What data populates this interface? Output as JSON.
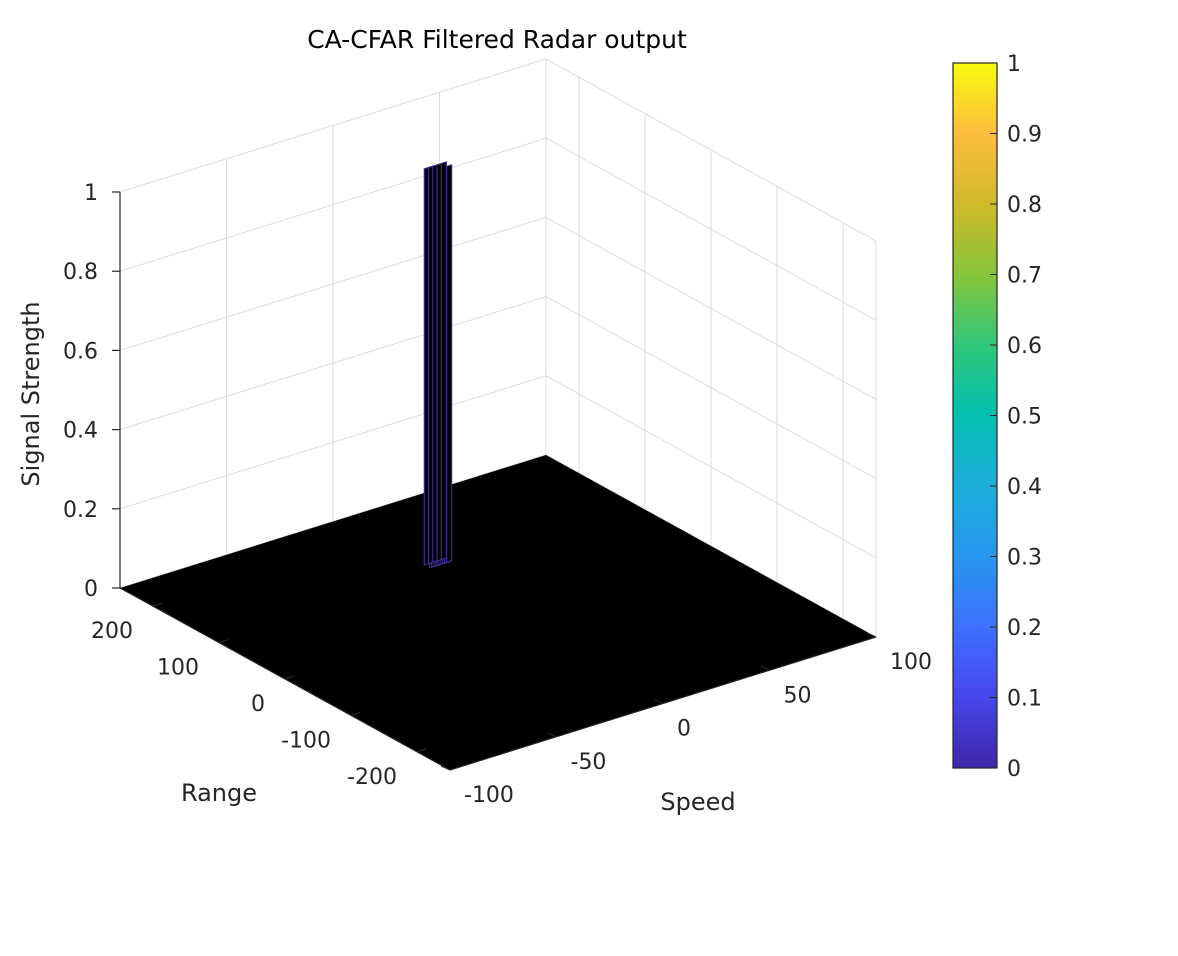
{
  "chart_data": {
    "type": "surface",
    "title": "CA-CFAR Filtered Radar output",
    "xlabel": "Speed",
    "ylabel": "Range",
    "zlabel": "Signal Strength",
    "xlim": [
      -100,
      100
    ],
    "ylim": [
      -250,
      250
    ],
    "zlim": [
      0,
      1
    ],
    "x_ticks": [
      "-100",
      "-50",
      "0",
      "50",
      "100"
    ],
    "x_tick_values": [
      -100,
      -50,
      0,
      50,
      100
    ],
    "y_ticks": [
      "-200",
      "-100",
      "0",
      "100",
      "200"
    ],
    "y_tick_values": [
      -200,
      -100,
      0,
      100,
      200
    ],
    "z_ticks": [
      "0",
      "0.2",
      "0.4",
      "0.6",
      "0.8",
      "1"
    ],
    "z_tick_values": [
      0,
      0.2,
      0.4,
      0.6,
      0.8,
      1
    ],
    "grid": true,
    "surface_color": "#000000",
    "edge_color": "#3e2f95",
    "detections": [
      {
        "speed": 5,
        "range": 110,
        "value": 1
      },
      {
        "speed": 6,
        "range": 110,
        "value": 1
      },
      {
        "speed": 7,
        "range": 110,
        "value": 1
      },
      {
        "speed": 8,
        "range": 110,
        "value": 1
      },
      {
        "speed": 9,
        "range": 110,
        "value": 1
      },
      {
        "speed": 10,
        "range": 110,
        "value": 1
      },
      {
        "speed": 11,
        "range": 110,
        "value": 1
      },
      {
        "speed": 12,
        "range": 110,
        "value": 1
      },
      {
        "speed": 13,
        "range": 110,
        "value": 1
      },
      {
        "speed": 5,
        "range": 118,
        "value": 1
      },
      {
        "speed": 7,
        "range": 118,
        "value": 1
      },
      {
        "speed": 9,
        "range": 118,
        "value": 1
      },
      {
        "speed": 11,
        "range": 118,
        "value": 1
      },
      {
        "speed": 13,
        "range": 118,
        "value": 1
      }
    ],
    "colorbar": {
      "ticks": [
        "0",
        "0.1",
        "0.2",
        "0.3",
        "0.4",
        "0.5",
        "0.6",
        "0.7",
        "0.8",
        "0.9",
        "1"
      ],
      "tick_values": [
        0,
        0.1,
        0.2,
        0.3,
        0.4,
        0.5,
        0.6,
        0.7,
        0.8,
        0.9,
        1
      ],
      "colormap": [
        "#3e26a8",
        "#4746eb",
        "#3e70ff",
        "#2797ef",
        "#1caedb",
        "#03bfb1",
        "#30c779",
        "#86c539",
        "#d0ba28",
        "#fdbd3c",
        "#f9fb0e"
      ]
    }
  }
}
